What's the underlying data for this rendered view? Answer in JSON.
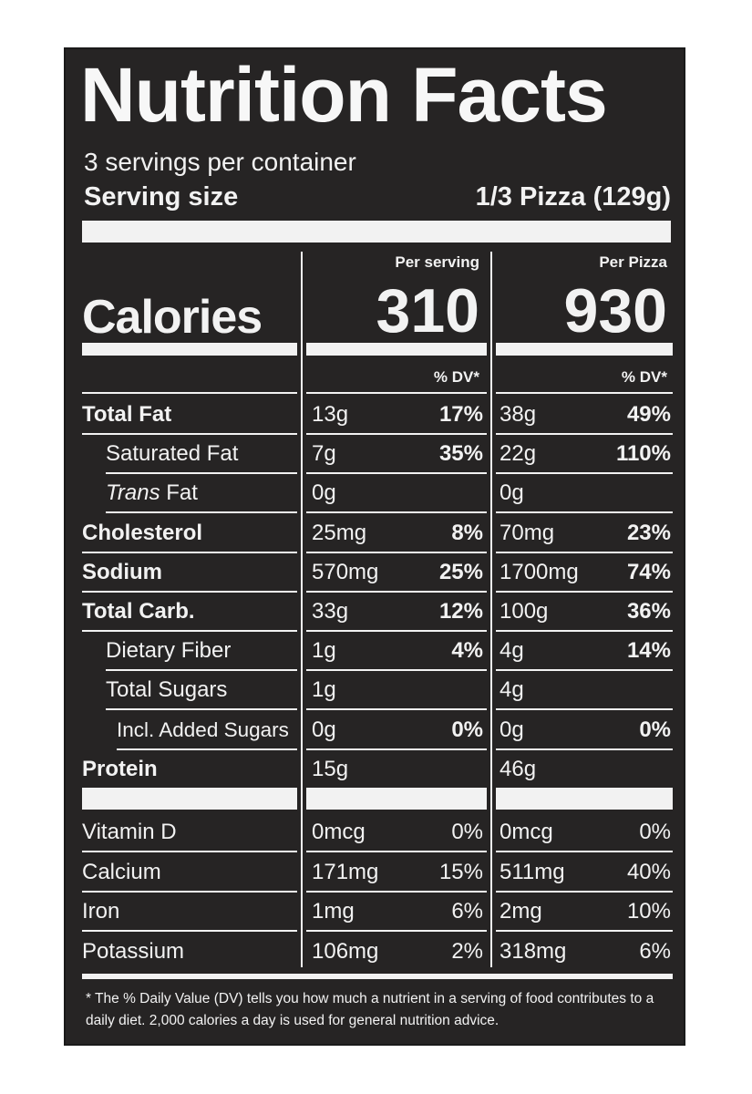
{
  "title": "Nutrition Facts",
  "servings_per_container": "3 servings per container",
  "serving_size_label": "Serving size",
  "serving_size_value": "1/3 Pizza (129g)",
  "columns": {
    "per_serving_header": "Per serving",
    "per_pizza_header": "Per Pizza",
    "dv_header": "% DV*"
  },
  "calories": {
    "label": "Calories",
    "per_serving": "310",
    "per_pizza": "930"
  },
  "nutrients": [
    {
      "label": "Total Fat",
      "italic_prefix": "",
      "bold": true,
      "indent": 0,
      "s_amt": "13g",
      "s_dv": "17%",
      "p_amt": "38g",
      "p_dv": "49%"
    },
    {
      "label": "Saturated Fat",
      "italic_prefix": "",
      "bold": false,
      "indent": 1,
      "s_amt": "7g",
      "s_dv": "35%",
      "p_amt": "22g",
      "p_dv": "110%"
    },
    {
      "label": " Fat",
      "italic_prefix": "Trans",
      "bold": false,
      "indent": 1,
      "s_amt": "0g",
      "s_dv": "",
      "p_amt": "0g",
      "p_dv": ""
    },
    {
      "label": "Cholesterol",
      "italic_prefix": "",
      "bold": true,
      "indent": 0,
      "s_amt": "25mg",
      "s_dv": "8%",
      "p_amt": "70mg",
      "p_dv": "23%"
    },
    {
      "label": "Sodium",
      "italic_prefix": "",
      "bold": true,
      "indent": 0,
      "s_amt": "570mg",
      "s_dv": "25%",
      "p_amt": "1700mg",
      "p_dv": "74%"
    },
    {
      "label": "Total Carb.",
      "italic_prefix": "",
      "bold": true,
      "indent": 0,
      "s_amt": "33g",
      "s_dv": "12%",
      "p_amt": "100g",
      "p_dv": "36%"
    },
    {
      "label": "Dietary Fiber",
      "italic_prefix": "",
      "bold": false,
      "indent": 1,
      "s_amt": "1g",
      "s_dv": "4%",
      "p_amt": "4g",
      "p_dv": "14%"
    },
    {
      "label": "Total Sugars",
      "italic_prefix": "",
      "bold": false,
      "indent": 1,
      "s_amt": "1g",
      "s_dv": "",
      "p_amt": "4g",
      "p_dv": ""
    },
    {
      "label": "Incl. Added Sugars",
      "italic_prefix": "",
      "bold": false,
      "indent": 2,
      "s_amt": "0g",
      "s_dv": "0%",
      "p_amt": "0g",
      "p_dv": "0%"
    },
    {
      "label": "Protein",
      "italic_prefix": "",
      "bold": true,
      "indent": 0,
      "s_amt": "15g",
      "s_dv": "",
      "p_amt": "46g",
      "p_dv": ""
    }
  ],
  "vitamins": [
    {
      "label": "Vitamin D",
      "s_amt": "0mcg",
      "s_dv": "0%",
      "p_amt": "0mcg",
      "p_dv": "0%"
    },
    {
      "label": "Calcium",
      "s_amt": "171mg",
      "s_dv": "15%",
      "p_amt": "511mg",
      "p_dv": "40%"
    },
    {
      "label": "Iron",
      "s_amt": "1mg",
      "s_dv": "6%",
      "p_amt": "2mg",
      "p_dv": "10%"
    },
    {
      "label": "Potassium",
      "s_amt": "106mg",
      "s_dv": "2%",
      "p_amt": "318mg",
      "p_dv": "6%"
    }
  ],
  "footnote": "* The % Daily Value (DV) tells you how much a nutrient in a serving of food contributes to a daily diet. 2,000 calories a day is used for general nutrition advice.",
  "colors": {
    "background": "#262424",
    "text": "#f2f2f2"
  }
}
